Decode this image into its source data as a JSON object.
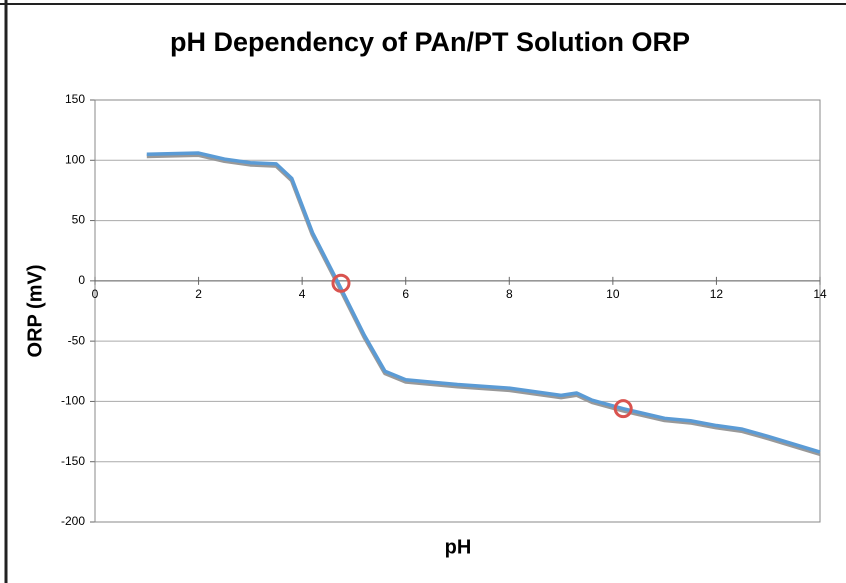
{
  "chart_data": {
    "type": "line",
    "title": "pH Dependency of PAn/PT Solution ORP",
    "x_label": "pH",
    "y_label": "ORP (mV)",
    "x": [
      1,
      2,
      2.5,
      3,
      3.5,
      3.8,
      4.2,
      4.7,
      5.2,
      5.6,
      6,
      7,
      8,
      9,
      9.3,
      9.6,
      10.2,
      11,
      11.5,
      12,
      12.5,
      13,
      14
    ],
    "values": [
      105,
      106,
      101,
      98,
      97,
      85,
      40,
      -2,
      -45,
      -75,
      -82,
      -86,
      -89,
      -95,
      -93,
      -99,
      -106,
      -114,
      -116,
      -120,
      -123,
      -129,
      -142
    ],
    "color": "#5b9bd5",
    "highlight_points": {
      "x": [
        4.75,
        10.2
      ],
      "values": [
        -2,
        -106
      ],
      "color": "#d9534f"
    },
    "xlim": [
      0,
      14
    ],
    "xticks": [
      0,
      2,
      4,
      6,
      8,
      10,
      12,
      14
    ],
    "ylim": [
      -200,
      150
    ],
    "yticks": [
      -200,
      -150,
      -100,
      -50,
      0,
      50,
      100,
      150
    ],
    "grid": true
  }
}
